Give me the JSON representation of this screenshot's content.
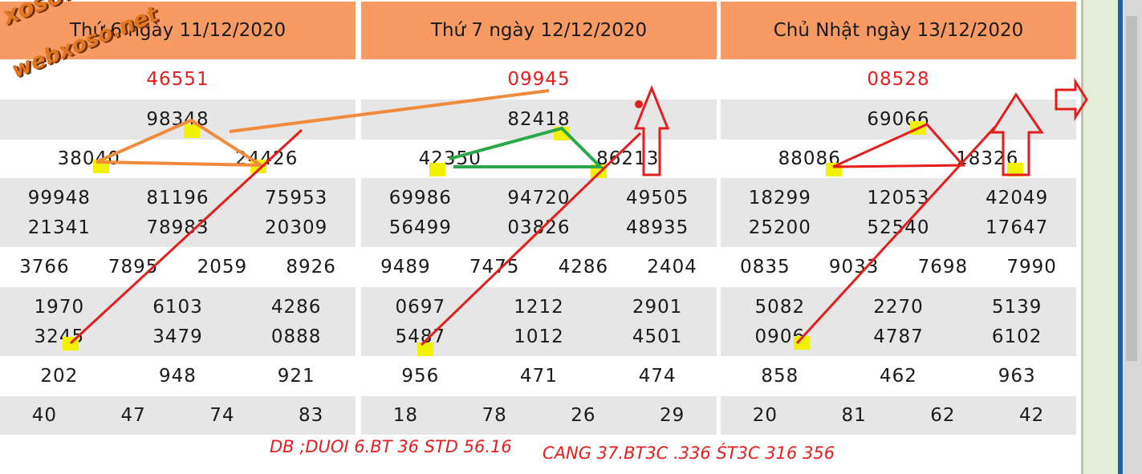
{
  "boards": [
    {
      "title": "Thứ 6 ngày 11/12/2020",
      "special": "46551",
      "first": "98348",
      "second": [
        "38040",
        "24426"
      ],
      "third": [
        [
          "99948",
          "81196",
          "75953"
        ],
        [
          "21341",
          "78983",
          "20309"
        ]
      ],
      "fourth": [
        "3766",
        "7895",
        "2059",
        "8926"
      ],
      "fifth": [
        [
          "1970",
          "6103",
          "4286"
        ],
        [
          "3245",
          "3479",
          "0888"
        ]
      ],
      "sixth": [
        "202",
        "948",
        "921"
      ],
      "seventh": [
        "40",
        "47",
        "74",
        "83"
      ]
    },
    {
      "title": "Thứ 7 ngày 12/12/2020",
      "special": "09945",
      "first": "82418",
      "second": [
        "42350",
        "86213"
      ],
      "third": [
        [
          "69986",
          "94720",
          "49505"
        ],
        [
          "56499",
          "03826",
          "48935"
        ]
      ],
      "fourth": [
        "9489",
        "7475",
        "4286",
        "2404"
      ],
      "fifth": [
        [
          "0697",
          "1212",
          "2901"
        ],
        [
          "5487",
          "1012",
          "4501"
        ]
      ],
      "sixth": [
        "956",
        "471",
        "474"
      ],
      "seventh": [
        "18",
        "78",
        "26",
        "29"
      ]
    },
    {
      "title": "Chủ Nhật ngày 13/12/2020",
      "special": "08528",
      "first": "69066",
      "second": [
        "88086",
        "18326"
      ],
      "third": [
        [
          "18299",
          "12053",
          "42049"
        ],
        [
          "25200",
          "52540",
          "17647"
        ]
      ],
      "fourth": [
        "0835",
        "9033",
        "7698",
        "7990"
      ],
      "fifth": [
        [
          "5082",
          "2270",
          "5139"
        ],
        [
          "0906",
          "4787",
          "6102"
        ]
      ],
      "sixth": [
        "858",
        "462",
        "963"
      ],
      "seventh": [
        "20",
        "81",
        "62",
        "42"
      ]
    }
  ],
  "notes": {
    "left": "DB ;DUOI 6.BT 36 STD 56.16",
    "right": "CANG 37.BT3C .336 ŚT3C  316 356"
  },
  "watermark": {
    "line1": "xoso.net",
    "line2": "webxoso.net"
  },
  "colors": {
    "header": "#f79a64",
    "special": "#e41d1d",
    "grey_row": "#e6e6e6",
    "highlight": "#f2f200",
    "annotation_red": "#e41d1d",
    "annotation_orange": "#f08a3c",
    "annotation_green": "#2aa84a"
  }
}
